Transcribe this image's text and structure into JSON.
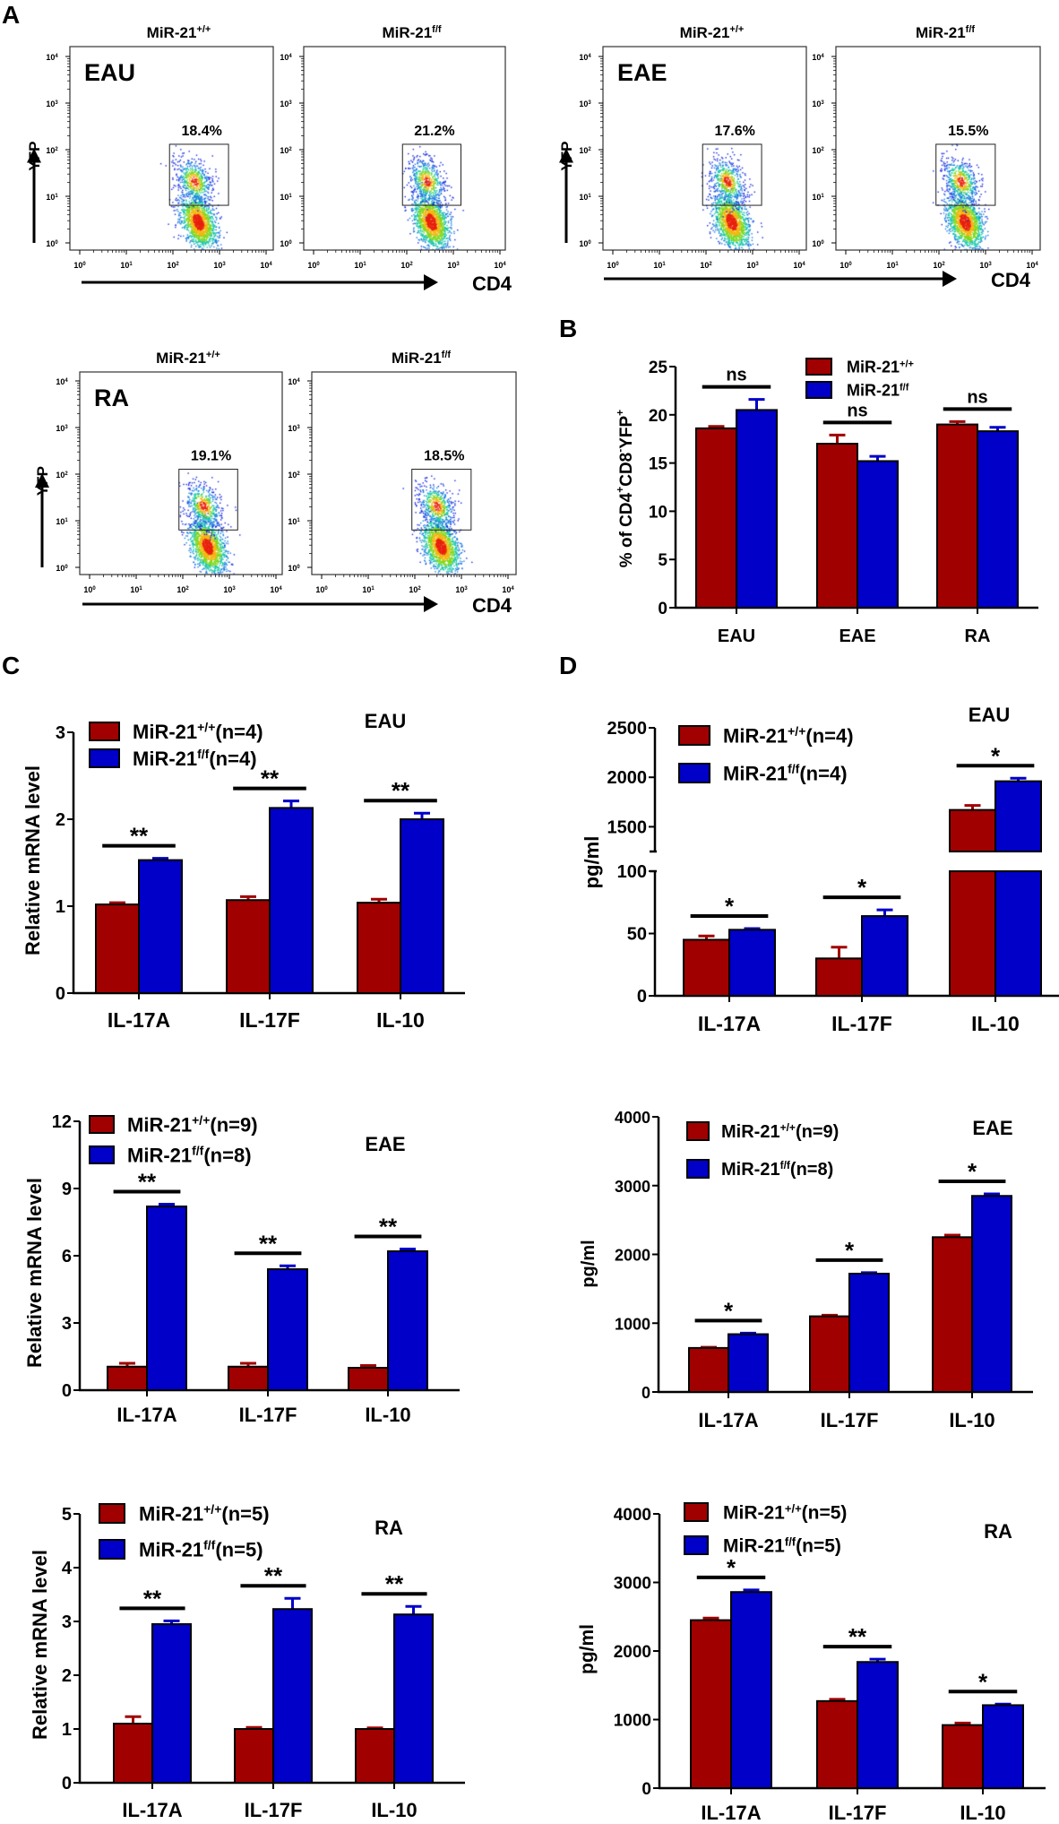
{
  "panel_labels": {
    "A": "A",
    "B": "B",
    "C": "C",
    "D": "D"
  },
  "colors": {
    "wt": "#a00000",
    "ff": "#0000c8",
    "axis": "#000000"
  },
  "flow": {
    "x_axis_label": "CD4",
    "y_axis_label": "YFP",
    "tick_base": "10",
    "tick_exponents": [
      "0",
      "1",
      "2",
      "3",
      "4"
    ],
    "groups": [
      {
        "name": "EAU",
        "plots": [
          {
            "title": [
              "MiR-21",
              {
                "sup": "+/+"
              }
            ],
            "gate_percent": "18.4%"
          },
          {
            "title": [
              "MiR-21",
              {
                "sup": "f/f"
              }
            ],
            "gate_percent": "21.2%"
          }
        ]
      },
      {
        "name": "EAE",
        "plots": [
          {
            "title": [
              "MiR-21",
              {
                "sup": "+/+"
              }
            ],
            "gate_percent": "17.6%"
          },
          {
            "title": [
              "MiR-21",
              {
                "sup": "f/f"
              }
            ],
            "gate_percent": "15.5%"
          }
        ]
      },
      {
        "name": "RA",
        "plots": [
          {
            "title": [
              "MiR-21",
              {
                "sup": "+/+"
              }
            ],
            "gate_percent": "19.1%"
          },
          {
            "title": [
              "MiR-21",
              {
                "sup": "f/f"
              }
            ],
            "gate_percent": "18.5%"
          }
        ]
      }
    ]
  },
  "chart_data": [
    {
      "id": "B",
      "type": "bar",
      "title": "",
      "xlabel": "",
      "ylabel": [
        "% of  CD4",
        {
          "sup": "+"
        },
        "CD8",
        {
          "sup": "-"
        },
        "YFP",
        {
          "sup": "+"
        }
      ],
      "categories": [
        "EAU",
        "EAE",
        "RA"
      ],
      "ylim": [
        0,
        25
      ],
      "yticks": [
        0,
        5,
        10,
        15,
        20,
        25
      ],
      "series": [
        {
          "name": [
            "MiR-21",
            {
              "sup": "+/+"
            }
          ],
          "color": "#a00000",
          "values": [
            18.6,
            17.0,
            19.0
          ],
          "errors": [
            0.2,
            0.9,
            0.3
          ]
        },
        {
          "name": [
            "MiR-21",
            {
              "sup": "f/f"
            }
          ],
          "color": "#0000c8",
          "values": [
            20.5,
            15.2,
            18.3
          ],
          "errors": [
            1.1,
            0.5,
            0.4
          ]
        }
      ],
      "significance": [
        "ns",
        "ns",
        "ns"
      ],
      "legend": "top-right"
    },
    {
      "id": "C_EAU",
      "type": "bar",
      "title": "EAU",
      "xlabel": "",
      "ylabel": [
        "Relative mRNA level"
      ],
      "categories": [
        "IL-17A",
        "IL-17F",
        "IL-10"
      ],
      "ylim": [
        0,
        3
      ],
      "yticks": [
        0,
        1,
        2,
        3
      ],
      "series": [
        {
          "name": [
            "MiR-21",
            {
              "sup": "+/+"
            },
            "(n=4)"
          ],
          "color": "#a00000",
          "values": [
            1.02,
            1.07,
            1.04
          ],
          "errors": [
            0.02,
            0.04,
            0.04
          ]
        },
        {
          "name": [
            "MiR-21",
            {
              "sup": "f/f"
            },
            "(n=4)"
          ],
          "color": "#0000c8",
          "values": [
            1.53,
            2.13,
            2.0
          ],
          "errors": [
            0.02,
            0.08,
            0.07
          ]
        }
      ],
      "significance": [
        "**",
        "**",
        "**"
      ],
      "legend": "top-left"
    },
    {
      "id": "D_EAU",
      "type": "bar",
      "title": "EAU",
      "xlabel": "",
      "ylabel": [
        "pg/ml"
      ],
      "categories": [
        "IL-17A",
        "IL-17F",
        "IL-10"
      ],
      "ylim": [
        0,
        2500
      ],
      "y_break": {
        "segments": [
          [
            0,
            100
          ],
          [
            1250,
            2500
          ]
        ],
        "yticks": [
          0,
          50,
          100,
          1500,
          2000,
          2500
        ]
      },
      "series": [
        {
          "name": [
            "MiR-21",
            {
              "sup": "+/+"
            },
            "(n=4)"
          ],
          "color": "#a00000",
          "values": [
            45,
            30,
            1670
          ],
          "errors": [
            3,
            9,
            45
          ]
        },
        {
          "name": [
            "MiR-21",
            {
              "sup": "f/f"
            },
            "(n=4)"
          ],
          "color": "#0000c8",
          "values": [
            53,
            64,
            1960
          ],
          "errors": [
            1,
            5,
            30
          ]
        }
      ],
      "significance": [
        "*",
        "*",
        "*"
      ],
      "legend": "top-left"
    },
    {
      "id": "C_EAE",
      "type": "bar",
      "title": "EAE",
      "xlabel": "",
      "ylabel": [
        "Relative mRNA level"
      ],
      "categories": [
        "IL-17A",
        "IL-17F",
        "IL-10"
      ],
      "ylim": [
        0,
        12
      ],
      "yticks": [
        0,
        3,
        6,
        9,
        12
      ],
      "series": [
        {
          "name": [
            "MiR-21",
            {
              "sup": "+/+"
            },
            "(n=9)"
          ],
          "color": "#a00000",
          "values": [
            1.05,
            1.05,
            1.0
          ],
          "errors": [
            0.15,
            0.15,
            0.1
          ]
        },
        {
          "name": [
            "MiR-21",
            {
              "sup": "f/f"
            },
            "(n=8)"
          ],
          "color": "#0000c8",
          "values": [
            8.2,
            5.4,
            6.2
          ],
          "errors": [
            0.1,
            0.15,
            0.1
          ]
        }
      ],
      "significance": [
        "**",
        "**",
        "**"
      ],
      "legend": "top-left"
    },
    {
      "id": "D_EAE",
      "type": "bar",
      "title": "EAE",
      "xlabel": "",
      "ylabel": [
        "pg/ml"
      ],
      "categories": [
        "IL-17A",
        "IL-17F",
        "IL-10"
      ],
      "ylim": [
        0,
        4000
      ],
      "yticks": [
        0,
        1000,
        2000,
        3000,
        4000
      ],
      "series": [
        {
          "name": [
            "MiR-21",
            {
              "sup": "+/+"
            },
            "(n=9)"
          ],
          "color": "#a00000",
          "values": [
            640,
            1100,
            2250
          ],
          "errors": [
            10,
            15,
            30
          ]
        },
        {
          "name": [
            "MiR-21",
            {
              "sup": "f/f"
            },
            "(n=8)"
          ],
          "color": "#0000c8",
          "values": [
            840,
            1720,
            2850
          ],
          "errors": [
            15,
            15,
            30
          ]
        }
      ],
      "significance": [
        "*",
        "*",
        "*"
      ],
      "legend": "top-left"
    },
    {
      "id": "C_RA",
      "type": "bar",
      "title": "RA",
      "xlabel": "",
      "ylabel": [
        "Relative mRNA level"
      ],
      "categories": [
        "IL-17A",
        "IL-17F",
        "IL-10"
      ],
      "ylim": [
        0,
        5
      ],
      "yticks": [
        0,
        1,
        2,
        3,
        4,
        5
      ],
      "series": [
        {
          "name": [
            "MiR-21",
            {
              "sup": "+/+"
            },
            "(n=5)"
          ],
          "color": "#a00000",
          "values": [
            1.1,
            1.0,
            1.0
          ],
          "errors": [
            0.13,
            0.03,
            0.02
          ]
        },
        {
          "name": [
            "MiR-21",
            {
              "sup": "f/f"
            },
            "(n=5)"
          ],
          "color": "#0000c8",
          "values": [
            2.95,
            3.23,
            3.13
          ],
          "errors": [
            0.06,
            0.2,
            0.15
          ]
        }
      ],
      "significance": [
        "**",
        "**",
        "**"
      ],
      "legend": "top-left"
    },
    {
      "id": "D_RA",
      "type": "bar",
      "title": "RA",
      "xlabel": "",
      "ylabel": [
        "pg/ml"
      ],
      "categories": [
        "IL-17A",
        "IL-17F",
        "IL-10"
      ],
      "ylim": [
        0,
        4000
      ],
      "yticks": [
        0,
        1000,
        2000,
        3000,
        4000
      ],
      "series": [
        {
          "name": [
            "MiR-21",
            {
              "sup": "+/+"
            },
            "(n=5)"
          ],
          "color": "#a00000",
          "values": [
            2450,
            1270,
            920
          ],
          "errors": [
            30,
            25,
            30
          ]
        },
        {
          "name": [
            "MiR-21",
            {
              "sup": "f/f"
            },
            "(n=5)"
          ],
          "color": "#0000c8",
          "values": [
            2860,
            1840,
            1210
          ],
          "errors": [
            30,
            40,
            15
          ]
        }
      ],
      "significance": [
        "*",
        "**",
        "*"
      ],
      "legend": "top-left"
    }
  ]
}
